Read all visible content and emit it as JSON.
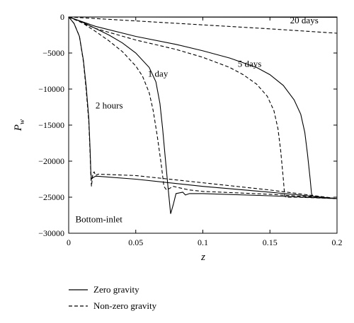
{
  "chart_data": {
    "type": "line",
    "xlabel": "z",
    "ylabel_main": "P",
    "ylabel_sub": "w",
    "xlim": [
      0,
      0.2
    ],
    "ylim": [
      -30000,
      0
    ],
    "x_ticks": [
      0,
      0.05,
      0.1,
      0.15,
      0.2
    ],
    "x_tick_labels": [
      "0",
      "0.05",
      "0.1",
      "0.15",
      "0.2"
    ],
    "y_ticks": [
      0,
      -5000,
      -10000,
      -15000,
      -20000,
      -25000,
      -30000
    ],
    "y_tick_labels": [
      "0",
      "−5000",
      "−10000",
      "−15000",
      "−20000",
      "−25000",
      "−30000"
    ],
    "grid": false,
    "legend_position": "bottom-left, below plot",
    "annotations": [
      {
        "text": "2 hours",
        "x": 0.02,
        "y": -12700
      },
      {
        "text": "1 day",
        "x": 0.059,
        "y": -8300
      },
      {
        "text": "5 days",
        "x": 0.126,
        "y": -6900
      },
      {
        "text": "20 days",
        "x": 0.165,
        "y": -900
      },
      {
        "text": "Bottom-inlet",
        "x": 0.005,
        "y": -28500
      }
    ],
    "series": [
      {
        "name": "Zero gravity",
        "style": "solid",
        "time": "2 hours",
        "x": [
          0,
          0.004,
          0.008,
          0.011,
          0.013,
          0.015,
          0.016,
          0.0165,
          0.017,
          0.018,
          0.019,
          0.02,
          0.022,
          0.05,
          0.1,
          0.15,
          0.2
        ],
        "y": [
          0,
          -900,
          -2700,
          -6000,
          -9500,
          -14000,
          -18500,
          -21500,
          -22500,
          -22300,
          -22200,
          -22100,
          -22100,
          -22500,
          -23500,
          -24300,
          -25200
        ]
      },
      {
        "name": "Non-zero gravity",
        "style": "dashed",
        "time": "2 hours",
        "x": [
          0,
          0.004,
          0.008,
          0.011,
          0.013,
          0.015,
          0.016,
          0.0165,
          0.017,
          0.018,
          0.019,
          0.02,
          0.022,
          0.05,
          0.1,
          0.15,
          0.2
        ],
        "y": [
          0,
          -900,
          -2700,
          -6200,
          -10000,
          -14500,
          -19000,
          -22000,
          -23500,
          -21700,
          -21500,
          -22000,
          -21800,
          -22000,
          -23000,
          -24000,
          -25200
        ]
      },
      {
        "name": "Zero gravity",
        "style": "solid",
        "time": "1 day",
        "x": [
          0,
          0.01,
          0.02,
          0.03,
          0.04,
          0.05,
          0.06,
          0.065,
          0.068,
          0.07,
          0.072,
          0.074,
          0.076,
          0.078,
          0.08,
          0.085,
          0.087,
          0.09,
          0.1,
          0.15,
          0.2
        ],
        "y": [
          0,
          -700,
          -1600,
          -2500,
          -3600,
          -5000,
          -7000,
          -9000,
          -12000,
          -15500,
          -19500,
          -23500,
          -27300,
          -26000,
          -24500,
          -24300,
          -24700,
          -24500,
          -24500,
          -24800,
          -25200
        ]
      },
      {
        "name": "Non-zero gravity",
        "style": "dashed",
        "time": "1 day",
        "x": [
          0,
          0.01,
          0.02,
          0.03,
          0.04,
          0.05,
          0.055,
          0.06,
          0.063,
          0.066,
          0.069,
          0.071,
          0.073,
          0.078,
          0.085,
          0.09,
          0.1,
          0.15,
          0.2
        ],
        "y": [
          0,
          -800,
          -2000,
          -3300,
          -4800,
          -6800,
          -8200,
          -10500,
          -13000,
          -16500,
          -20500,
          -23500,
          -24000,
          -23500,
          -23800,
          -24000,
          -24200,
          -24600,
          -25200
        ]
      },
      {
        "name": "Zero gravity",
        "style": "solid",
        "time": "5 days",
        "x": [
          0,
          0.02,
          0.05,
          0.08,
          0.1,
          0.12,
          0.14,
          0.15,
          0.16,
          0.168,
          0.173,
          0.176,
          0.178,
          0.18,
          0.181,
          0.182,
          0.2
        ],
        "y": [
          0,
          -1300,
          -2700,
          -3800,
          -4700,
          -5700,
          -7000,
          -8000,
          -9500,
          -11500,
          -13500,
          -16000,
          -19000,
          -22500,
          -24500,
          -24900,
          -25200
        ]
      },
      {
        "name": "Non-zero gravity",
        "style": "dashed",
        "time": "5 days",
        "x": [
          0,
          0.02,
          0.05,
          0.08,
          0.1,
          0.12,
          0.13,
          0.14,
          0.148,
          0.153,
          0.156,
          0.158,
          0.16,
          0.161,
          0.162,
          0.17,
          0.2
        ],
        "y": [
          0,
          -1600,
          -3200,
          -4500,
          -5600,
          -7000,
          -8000,
          -9300,
          -11000,
          -13000,
          -15500,
          -18500,
          -22500,
          -24800,
          -25000,
          -25000,
          -25200
        ]
      },
      {
        "name": "Zero gravity",
        "style": "solid",
        "time": "20 days",
        "x": [
          0,
          0.05,
          0.1,
          0.15,
          0.2
        ],
        "y": [
          0,
          -10,
          -20,
          -30,
          -40
        ]
      },
      {
        "name": "Non-zero gravity",
        "style": "dashed",
        "time": "20 days",
        "x": [
          0,
          0.05,
          0.1,
          0.15,
          0.2
        ],
        "y": [
          0,
          -550,
          -1100,
          -1650,
          -2250
        ]
      }
    ],
    "legend": [
      {
        "label": "Zero gravity",
        "style": "solid"
      },
      {
        "label": "Non-zero gravity",
        "style": "dashed"
      }
    ]
  }
}
